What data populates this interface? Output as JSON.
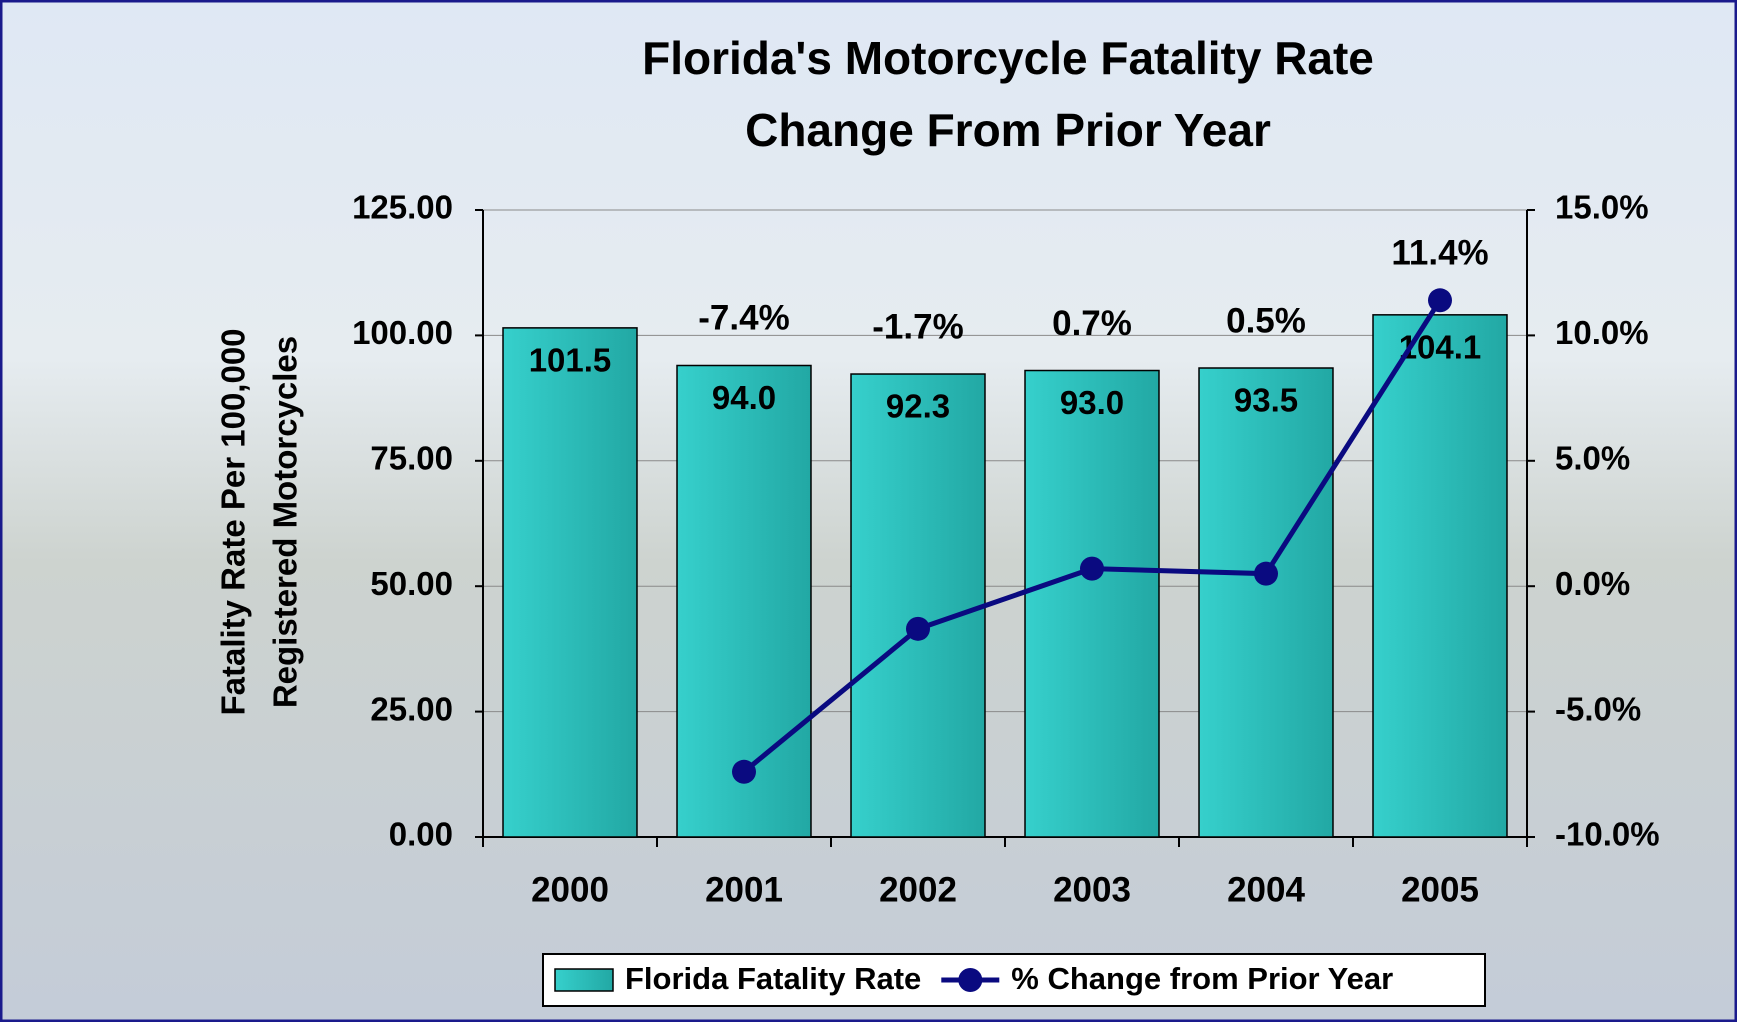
{
  "chart_data": {
    "type": "bar-line",
    "title": "Florida's Motorcycle Fatality Rate",
    "subtitle": "Change From Prior Year",
    "y_label": [
      "Fatality Rate Per 100,000",
      "Registered Motorcycles"
    ],
    "categories": [
      "2000",
      "2001",
      "2002",
      "2003",
      "2004",
      "2005"
    ],
    "series": [
      {
        "name": "Florida Fatality Rate",
        "type": "bar",
        "color": "#2ec4c0",
        "values": [
          101.5,
          94.0,
          92.3,
          93.0,
          93.5,
          104.1
        ],
        "value_labels": [
          "101.5",
          "94.0",
          "92.3",
          "93.0",
          "93.5",
          "104.1"
        ]
      },
      {
        "name": "% Change from Prior Year",
        "type": "line",
        "axis": "y2",
        "color": "#0a0a80",
        "values": [
          null,
          -7.4,
          -1.7,
          0.7,
          0.5,
          11.4
        ],
        "value_labels": [
          null,
          "-7.4%",
          "-1.7%",
          "0.7%",
          "0.5%",
          "11.4%"
        ]
      }
    ],
    "ylim": [
      0,
      125
    ],
    "yticks": [
      {
        "value": 0,
        "label": "0.00"
      },
      {
        "value": 25,
        "label": "25.00"
      },
      {
        "value": 50,
        "label": "50.00"
      },
      {
        "value": 75,
        "label": "75.00"
      },
      {
        "value": 100,
        "label": "100.00"
      },
      {
        "value": 125,
        "label": "125.00"
      }
    ],
    "y2lim": [
      -10,
      15
    ],
    "y2ticks": [
      {
        "value": -10,
        "label": "-10.0%"
      },
      {
        "value": -5,
        "label": "-5.0%"
      },
      {
        "value": 0,
        "label": "0.0%"
      },
      {
        "value": 5,
        "label": "5.0%"
      },
      {
        "value": 10,
        "label": "10.0%"
      },
      {
        "value": 15,
        "label": "15.0%"
      }
    ],
    "grid": true,
    "legend": "bottom"
  }
}
